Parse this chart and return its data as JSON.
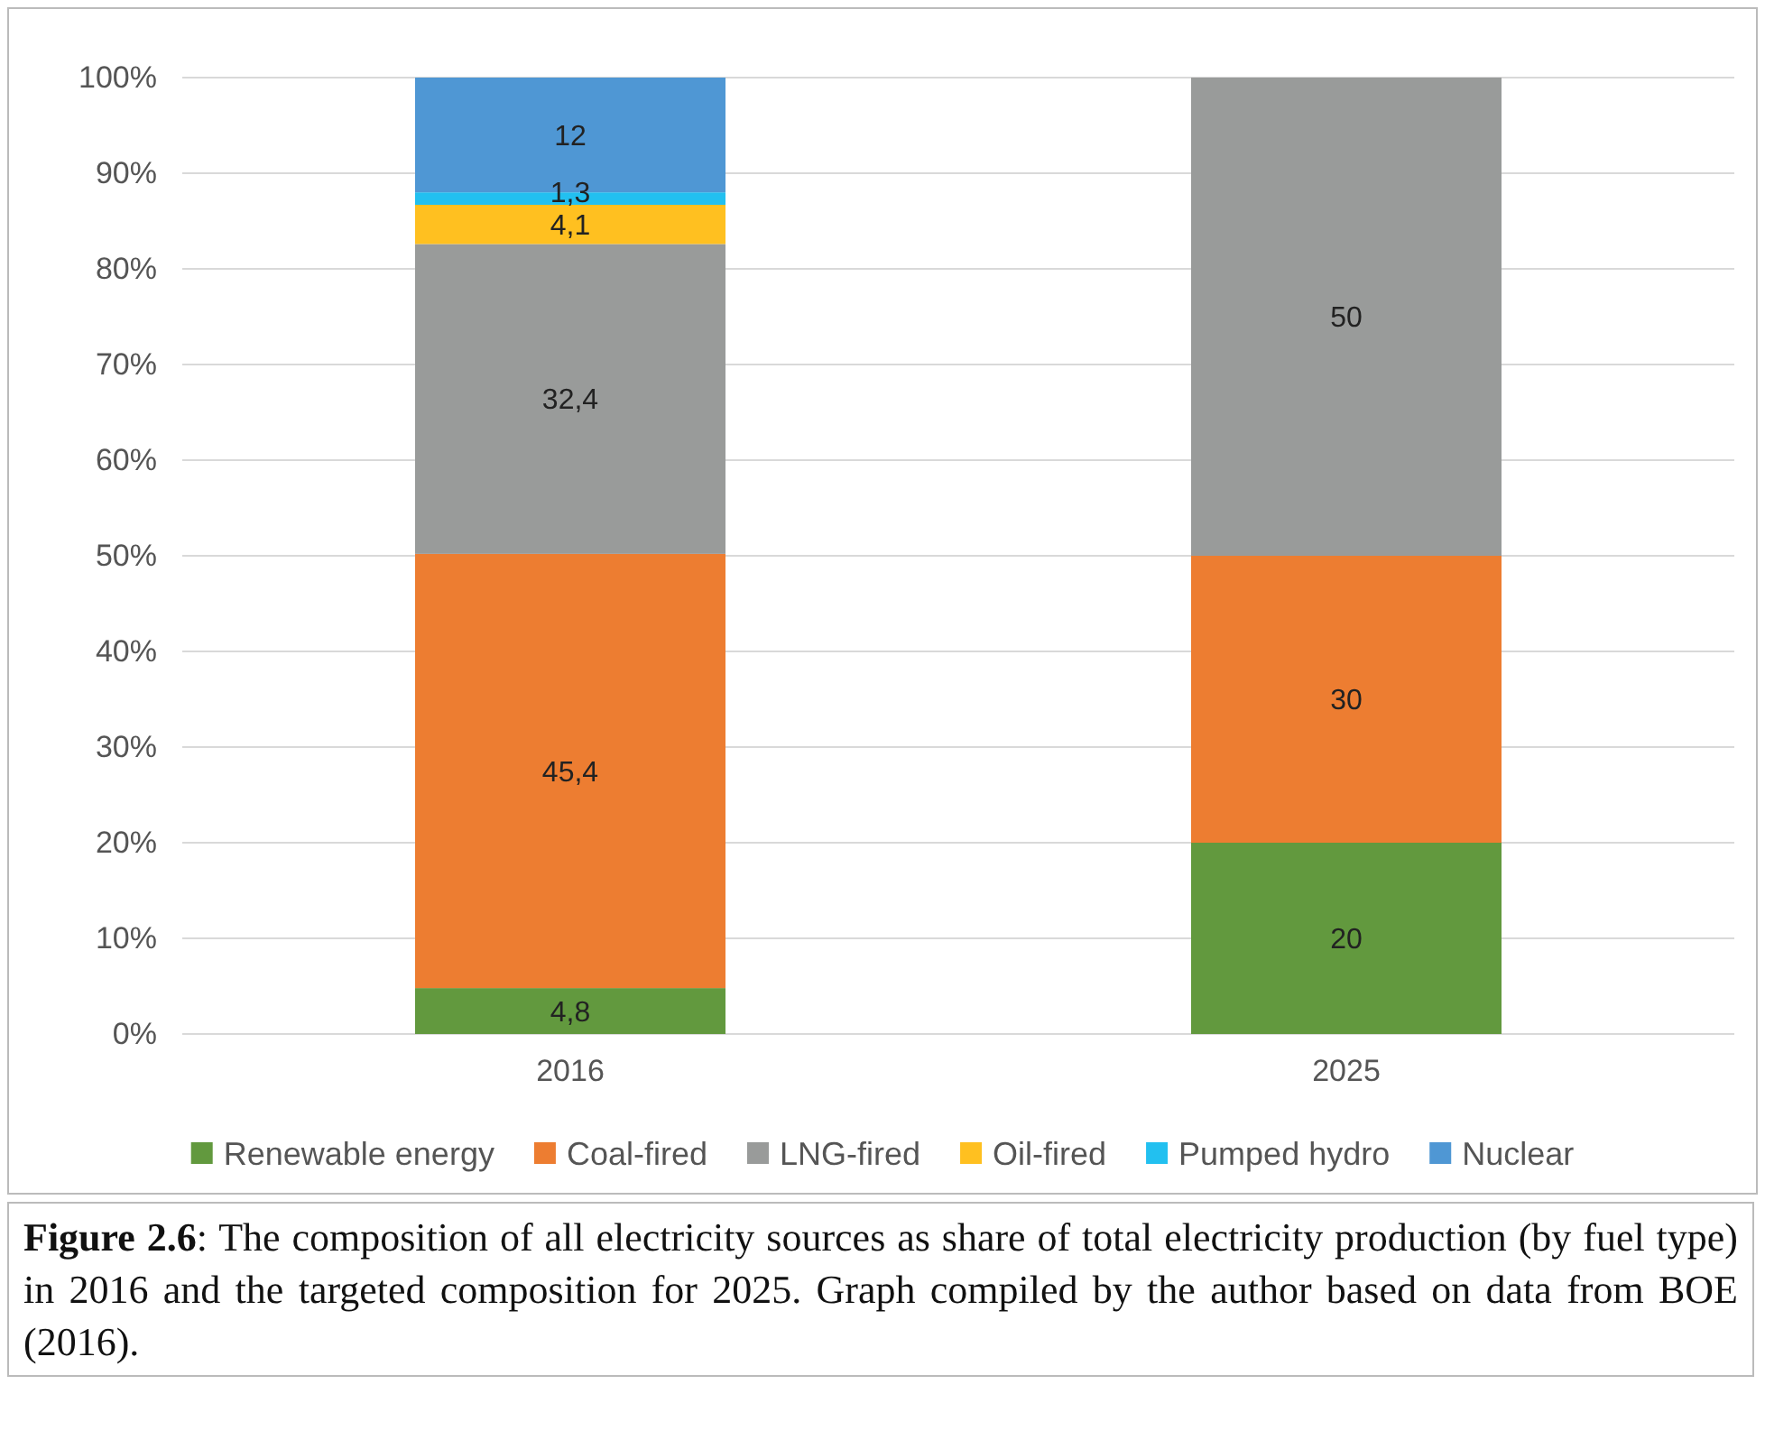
{
  "chart_data": {
    "type": "bar",
    "stacked": true,
    "categories": [
      "2016",
      "2025"
    ],
    "series": [
      {
        "name": "Renewable energy",
        "color": "#62993e",
        "values": [
          4.8,
          20
        ],
        "value_labels": [
          "4,8",
          "20"
        ]
      },
      {
        "name": "Coal-fired",
        "color": "#ed7d31",
        "values": [
          45.4,
          30
        ],
        "value_labels": [
          "45,4",
          "30"
        ]
      },
      {
        "name": "LNG-fired",
        "color": "#999b9a",
        "values": [
          32.4,
          50
        ],
        "value_labels": [
          "32,4",
          "50"
        ]
      },
      {
        "name": "Oil-fired",
        "color": "#ffc020",
        "values": [
          4.1,
          null
        ],
        "value_labels": [
          "4,1",
          null
        ]
      },
      {
        "name": "Pumped hydro",
        "color": "#22c0f0",
        "values": [
          1.3,
          null
        ],
        "value_labels": [
          "1,3",
          null
        ]
      },
      {
        "name": "Nuclear",
        "color": "#4f97d4",
        "values": [
          12,
          null
        ],
        "value_labels": [
          "12",
          null
        ]
      }
    ],
    "ylim": [
      0,
      100
    ],
    "yticks": [
      {
        "value": 0,
        "label": "0%"
      },
      {
        "value": 10,
        "label": "10%"
      },
      {
        "value": 20,
        "label": "20%"
      },
      {
        "value": 30,
        "label": "30%"
      },
      {
        "value": 40,
        "label": "40%"
      },
      {
        "value": 50,
        "label": "50%"
      },
      {
        "value": 60,
        "label": "60%"
      },
      {
        "value": 70,
        "label": "70%"
      },
      {
        "value": 80,
        "label": "80%"
      },
      {
        "value": 90,
        "label": "90%"
      },
      {
        "value": 100,
        "label": "100%"
      }
    ],
    "grid": "y",
    "legend": "bottom",
    "annotations": [
      "Figure 2.6: The composition of all electricity sources as share of total electricity production (by fuel type) in 2016 and the targeted composition for 2025. Graph compiled by the author based on data from BOE (2016)."
    ]
  }
}
